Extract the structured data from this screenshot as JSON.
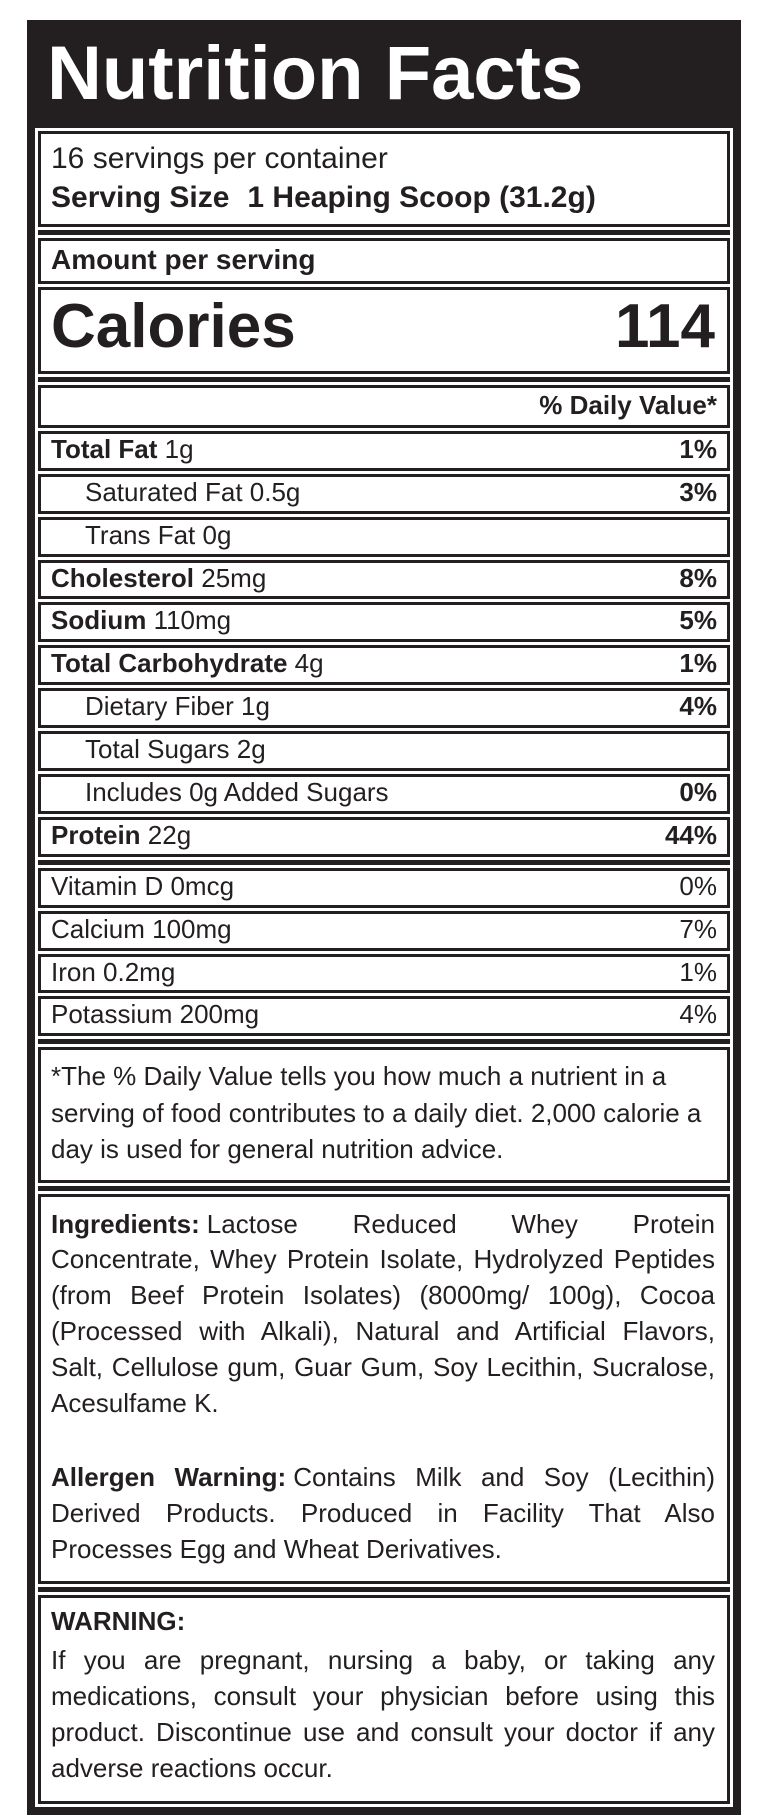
{
  "colors": {
    "ink": "#231f20",
    "paper": "#ffffff"
  },
  "label": {
    "title": "Nutrition Facts",
    "servings_per_container": "16 servings per container",
    "serving_size_label": "Serving Size",
    "serving_size_value": "1 Heaping Scoop (31.2g)",
    "amount_per_serving": "Amount per serving",
    "calories_label": "Calories",
    "calories_value": "114",
    "daily_value_header": "% Daily Value*",
    "nutrients": [
      {
        "name": "Total Fat",
        "amount": "1g",
        "dv": "1%",
        "bold": true,
        "dvBold": true,
        "indent": false
      },
      {
        "name": "Saturated Fat",
        "amount": "0.5g",
        "dv": "3%",
        "bold": false,
        "dvBold": true,
        "indent": true
      },
      {
        "name": "Trans Fat",
        "amount": "0g",
        "dv": "",
        "bold": false,
        "dvBold": false,
        "indent": true
      },
      {
        "name": "Cholesterol",
        "amount": "25mg",
        "dv": "8%",
        "bold": true,
        "dvBold": true,
        "indent": false
      },
      {
        "name": "Sodium",
        "amount": "110mg",
        "dv": "5%",
        "bold": true,
        "dvBold": true,
        "indent": false
      },
      {
        "name": "Total Carbohydrate",
        "amount": "4g",
        "dv": "1%",
        "bold": true,
        "dvBold": true,
        "indent": false
      },
      {
        "name": "Dietary Fiber",
        "amount": "1g",
        "dv": "4%",
        "bold": false,
        "dvBold": true,
        "indent": true
      },
      {
        "name": "Total Sugars",
        "amount": "2g",
        "dv": "",
        "bold": false,
        "dvBold": false,
        "indent": true
      },
      {
        "name": "Includes 0g Added Sugars",
        "amount": "",
        "dv": "0%",
        "bold": false,
        "dvBold": true,
        "indent": true
      },
      {
        "name": "Protein",
        "amount": "22g",
        "dv": "44%",
        "bold": true,
        "dvBold": true,
        "indent": false
      }
    ],
    "micronutrients": [
      {
        "name": "Vitamin D 0mcg",
        "dv": "0%"
      },
      {
        "name": "Calcium 100mg",
        "dv": "7%"
      },
      {
        "name": "Iron 0.2mg",
        "dv": "1%"
      },
      {
        "name": "Potassium 200mg",
        "dv": "4%"
      }
    ],
    "footnote": "*The % Daily Value tells you how much a nutrient in a serving of food contributes to a daily diet. 2,000 calorie a day is used for general nutrition advice.",
    "ingredients_label": "Ingredients:",
    "ingredients_text": "Lactose Reduced Whey Protein Concentrate, Whey Protein Isolate, Hydrolyzed Peptides (from Beef Protein Isolates) (8000mg/ 100g), Cocoa (Processed with Alkali), Natural and Artificial Flavors, Salt, Cellulose gum, Guar Gum, Soy Lecithin, Sucralose, Acesulfame K.",
    "allergen_label": "Allergen Warning:",
    "allergen_text": "Contains Milk and Soy (Lecithin) Derived Products. Produced in Facility That Also Processes Egg and Wheat Derivatives.",
    "warning_label": "WARNING:",
    "warning_text": "If you are pregnant, nursing a baby, or taking any medications, consult your physician before using this product. Discontinue use and consult your doctor if any adverse reactions occur."
  }
}
